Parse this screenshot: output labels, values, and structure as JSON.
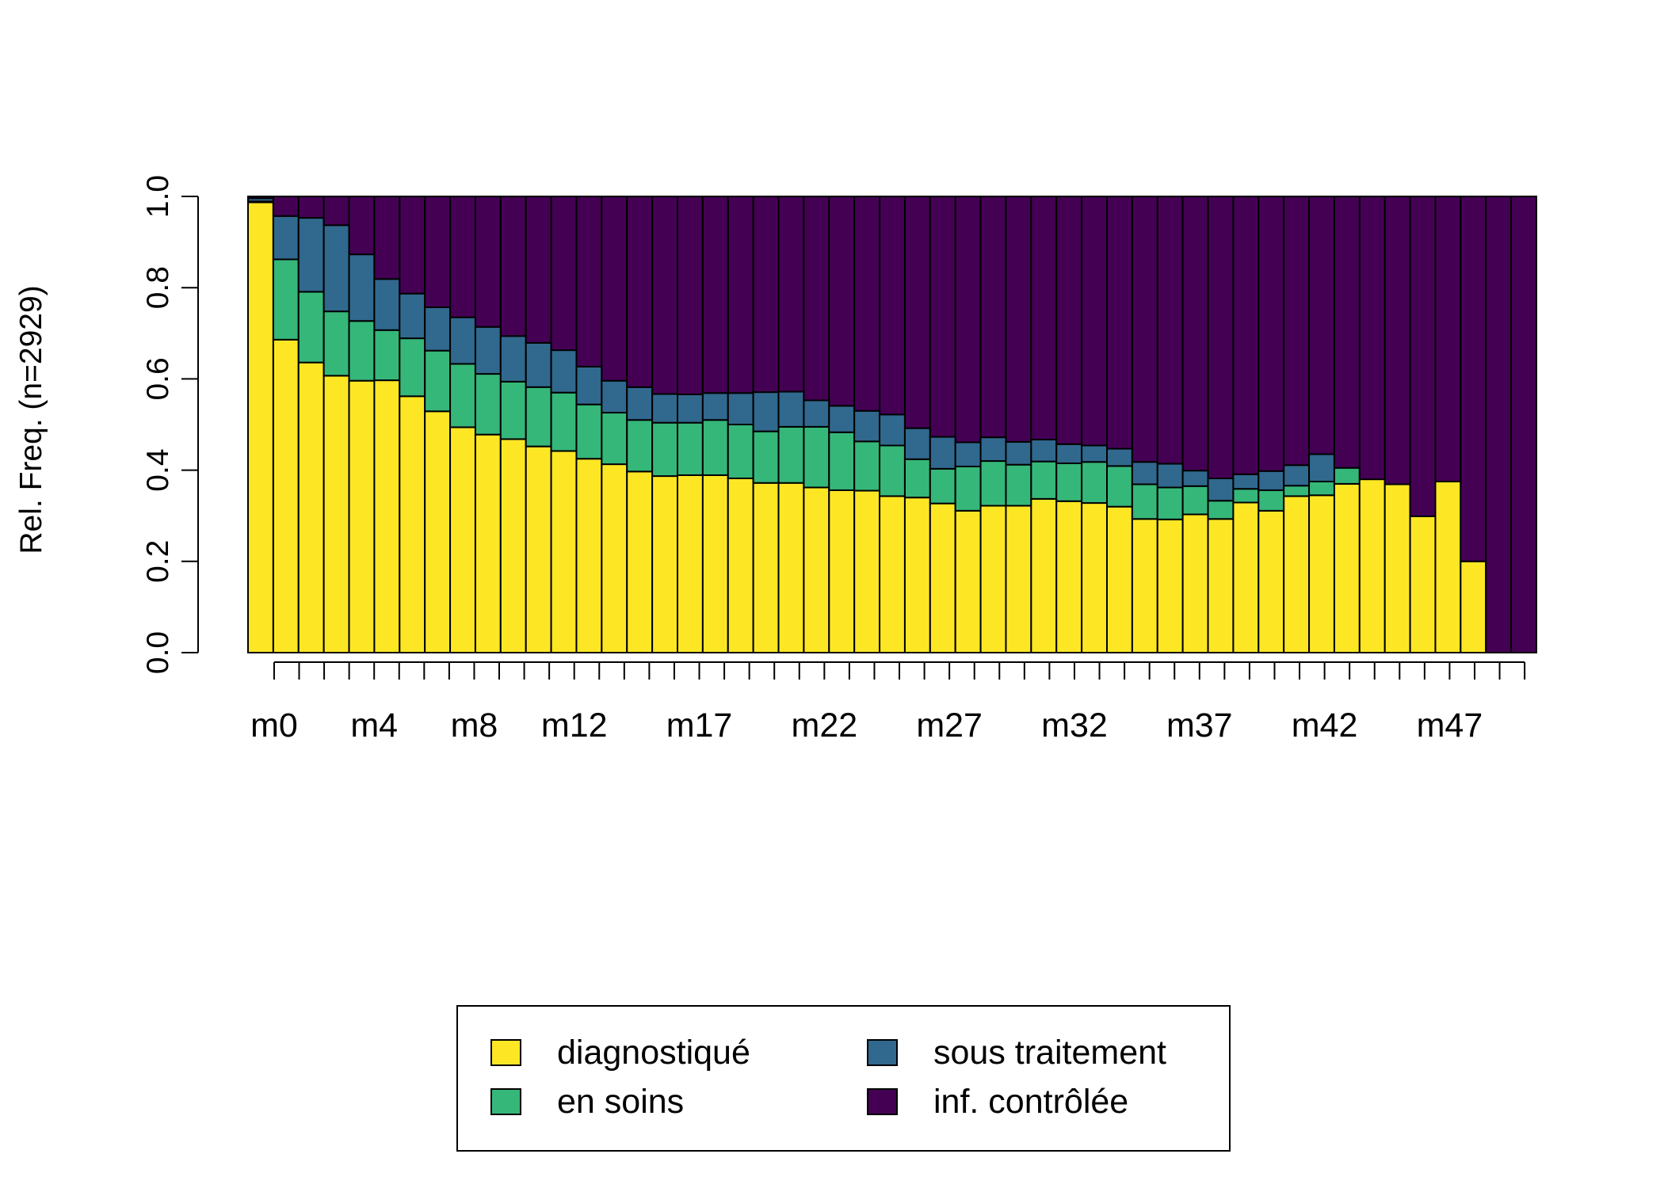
{
  "colors": {
    "diagnostique": "#FDE725",
    "en_soins": "#35B779",
    "sous_traitement": "#31688E",
    "inf_controlee": "#440154"
  },
  "chart_data": {
    "type": "bar",
    "stacked": true,
    "title": "",
    "xlabel": "",
    "ylabel": "Rel. Freq. (n=2929)",
    "ylim": [
      0,
      1
    ],
    "yticks": [
      "0.0",
      "0.2",
      "0.4",
      "0.6",
      "0.8",
      "1.0"
    ],
    "categories": [
      "m0",
      "m1",
      "m2",
      "m3",
      "m4",
      "m5",
      "m6",
      "m7",
      "m8",
      "m9",
      "m10",
      "m11",
      "m12",
      "m13",
      "m14",
      "m15",
      "m16",
      "m17",
      "m18",
      "m19",
      "m20",
      "m21",
      "m22",
      "m23",
      "m24",
      "m25",
      "m26",
      "m27",
      "m28",
      "m29",
      "m30",
      "m31",
      "m32",
      "m33",
      "m34",
      "m35",
      "m36",
      "m37",
      "m38",
      "m39",
      "m40",
      "m41",
      "m42",
      "m43",
      "m44",
      "m45",
      "m46",
      "m47",
      "m48",
      "m49",
      "m50"
    ],
    "visible_tick_labels": [
      "m0",
      "m4",
      "m8",
      "m12",
      "m17",
      "m22",
      "m27",
      "m32",
      "m37",
      "m42",
      "m47"
    ],
    "series": [
      {
        "name": "diagnostiqué",
        "color_key": "diagnostique",
        "values": [
          0.987,
          0.686,
          0.636,
          0.607,
          0.596,
          0.597,
          0.562,
          0.529,
          0.494,
          0.478,
          0.468,
          0.452,
          0.442,
          0.425,
          0.413,
          0.397,
          0.387,
          0.389,
          0.389,
          0.382,
          0.372,
          0.372,
          0.362,
          0.356,
          0.355,
          0.343,
          0.34,
          0.327,
          0.311,
          0.322,
          0.322,
          0.337,
          0.332,
          0.328,
          0.32,
          0.293,
          0.292,
          0.303,
          0.293,
          0.329,
          0.311,
          0.343,
          0.345,
          0.37,
          0.38,
          0.369,
          0.299,
          0.375,
          0.2,
          0.0,
          0.0
        ]
      },
      {
        "name": "en soins",
        "color_key": "en_soins",
        "values": [
          0.002,
          0.176,
          0.155,
          0.141,
          0.131,
          0.11,
          0.127,
          0.133,
          0.139,
          0.133,
          0.126,
          0.13,
          0.128,
          0.119,
          0.113,
          0.113,
          0.117,
          0.115,
          0.121,
          0.118,
          0.113,
          0.123,
          0.133,
          0.127,
          0.108,
          0.111,
          0.084,
          0.076,
          0.097,
          0.098,
          0.09,
          0.082,
          0.083,
          0.09,
          0.089,
          0.076,
          0.07,
          0.062,
          0.04,
          0.03,
          0.045,
          0.023,
          0.03,
          0.035,
          0.0,
          0.0,
          0.0,
          0.0,
          0.0,
          0.0,
          0.0
        ]
      },
      {
        "name": "sous traitement",
        "color_key": "sous_traitement",
        "values": [
          0.007,
          0.095,
          0.162,
          0.189,
          0.146,
          0.112,
          0.098,
          0.095,
          0.102,
          0.103,
          0.1,
          0.097,
          0.093,
          0.083,
          0.07,
          0.072,
          0.063,
          0.062,
          0.059,
          0.069,
          0.086,
          0.077,
          0.058,
          0.058,
          0.067,
          0.068,
          0.068,
          0.07,
          0.053,
          0.052,
          0.05,
          0.048,
          0.042,
          0.036,
          0.038,
          0.049,
          0.052,
          0.034,
          0.049,
          0.032,
          0.042,
          0.045,
          0.06,
          0.0,
          0.0,
          0.0,
          0.0,
          0.0,
          0.0,
          0.0,
          0.0
        ]
      },
      {
        "name": "inf. contrôlée",
        "color_key": "inf_controlee",
        "values": [
          0.004,
          0.043,
          0.047,
          0.063,
          0.127,
          0.181,
          0.213,
          0.243,
          0.265,
          0.286,
          0.306,
          0.321,
          0.337,
          0.373,
          0.404,
          0.418,
          0.433,
          0.434,
          0.431,
          0.431,
          0.429,
          0.428,
          0.447,
          0.459,
          0.47,
          0.478,
          0.508,
          0.527,
          0.539,
          0.528,
          0.538,
          0.533,
          0.543,
          0.546,
          0.553,
          0.582,
          0.586,
          0.601,
          0.618,
          0.609,
          0.602,
          0.589,
          0.565,
          0.595,
          0.62,
          0.631,
          0.701,
          0.625,
          0.8,
          1.0,
          1.0
        ]
      }
    ],
    "legend": {
      "placement": "bottom-center",
      "entries": [
        "diagnostiqué",
        "sous traitement",
        "en soins",
        "inf. contrôlée"
      ]
    }
  }
}
